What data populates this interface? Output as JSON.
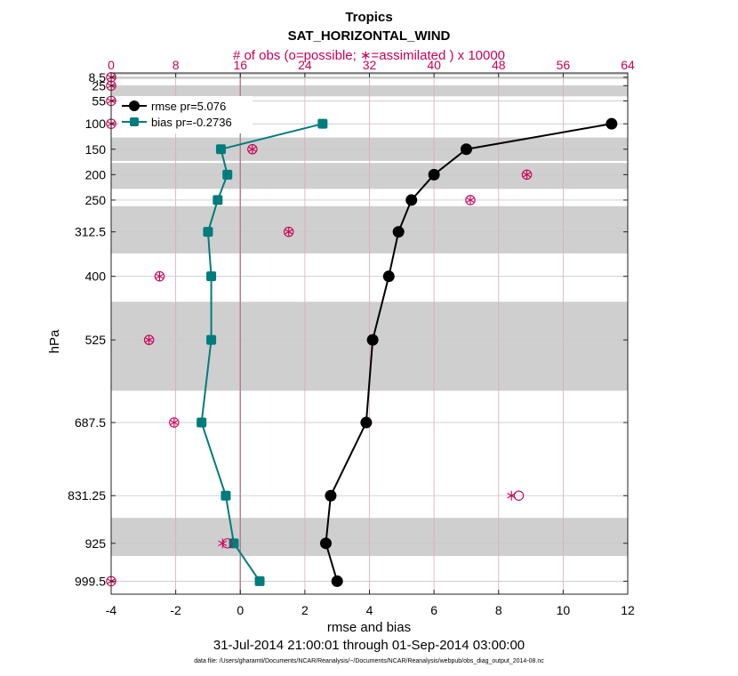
{
  "chart_data": {
    "type": "line",
    "title": "Tropics",
    "subtitle": "SAT_HORIZONTAL_WIND",
    "xlabel": "rmse and bias",
    "ylabel": "hPa",
    "top_xlabel": "# of obs (o=possible; ∗=assimilated ) x 10000",
    "date_range": "31-Jul-2014 21:00:01 through 01-Sep-2014 03:00:00",
    "footnote": "data file: /Users/gharamti/Documents/NCAR/Reanalysis/~/Documents/NCAR/Reanalysis/webpub/obs_diag_output_2014-08.nc",
    "xlim": [
      -4,
      12
    ],
    "xticks": [
      -4,
      -2,
      0,
      2,
      4,
      6,
      8,
      10,
      12
    ],
    "top_xlim": [
      0,
      64
    ],
    "top_xticks": [
      0,
      8,
      16,
      24,
      32,
      40,
      48,
      56,
      64
    ],
    "ylim": [
      0,
      1025
    ],
    "levels": [
      "8.5",
      "25",
      "55",
      "100",
      "150",
      "200",
      "250",
      "312.5",
      "400",
      "525",
      "687.5",
      "831.25",
      "925",
      "999.5"
    ],
    "level_values": [
      8.5,
      25,
      55,
      100,
      150,
      200,
      250,
      312.5,
      400,
      525,
      687.5,
      831.25,
      925,
      999.5
    ],
    "bands": [
      [
        0,
        4
      ],
      [
        7,
        12
      ],
      [
        26,
        46
      ],
      [
        127,
        173
      ],
      [
        177,
        228
      ],
      [
        262,
        355
      ],
      [
        450,
        625
      ],
      [
        875,
        950
      ]
    ],
    "series": [
      {
        "name": "rmse",
        "legend": "rmse pr=5.076",
        "color": "#000000",
        "values": [
          null,
          null,
          null,
          11.5,
          7.0,
          6.0,
          5.3,
          4.9,
          4.6,
          4.1,
          3.9,
          2.8,
          2.65,
          3.0
        ]
      },
      {
        "name": "bias",
        "legend": "bias pr=-0.2736",
        "color": "#007c7c",
        "values": [
          null,
          null,
          null,
          2.55,
          -0.6,
          -0.4,
          -0.7,
          -1.0,
          -0.9,
          -0.9,
          -1.2,
          -0.45,
          -0.2,
          0.6
        ]
      }
    ],
    "obs_possible": [
      0,
      0,
      0,
      0,
      17.5,
      51.5,
      44.5,
      22.0,
      6.0,
      4.7,
      7.8,
      50.5,
      14.4,
      0
    ],
    "obs_assimilated": [
      0,
      0,
      0,
      0,
      17.5,
      51.5,
      44.5,
      22.0,
      6.0,
      4.7,
      7.8,
      49.6,
      13.8,
      0
    ],
    "obs_color": "#cc0055",
    "zero_line_color": "#b08090"
  }
}
